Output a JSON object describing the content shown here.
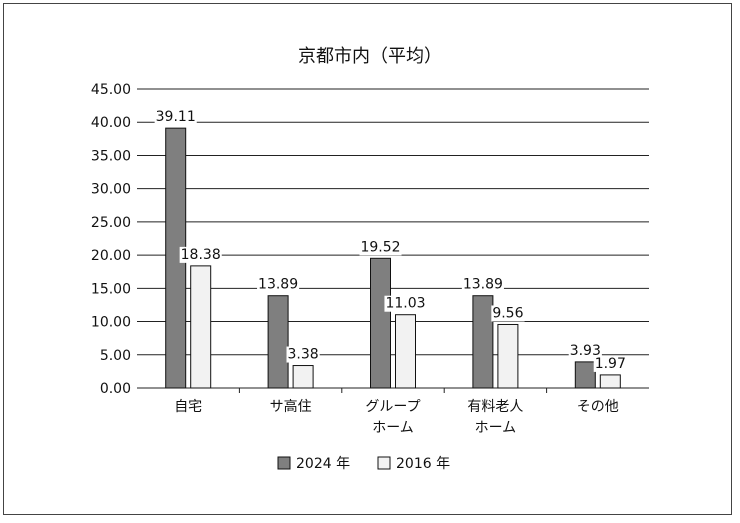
{
  "chart_data": {
    "type": "bar",
    "title": "京都市内（平均）",
    "xlabel": "",
    "ylabel": "",
    "ylim": [
      0,
      45
    ],
    "yticks": [
      "0.00",
      "5.00",
      "10.00",
      "15.00",
      "20.00",
      "25.00",
      "30.00",
      "35.00",
      "40.00",
      "45.00"
    ],
    "grid": true,
    "legend_position": "bottom",
    "categories": [
      [
        "自宅"
      ],
      [
        "サ高住"
      ],
      [
        "グループ",
        "ホーム"
      ],
      [
        "有料老人",
        "ホーム"
      ],
      [
        "その他"
      ]
    ],
    "series": [
      {
        "name": "2024 年",
        "color": "#7f7f7f",
        "values": [
          39.11,
          13.89,
          19.52,
          13.89,
          3.93
        ],
        "labels": [
          "39.11",
          "13.89",
          "19.52",
          "13.89",
          "3.93"
        ]
      },
      {
        "name": "2016 年",
        "color": "#f2f2f2",
        "values": [
          18.38,
          3.38,
          11.03,
          9.56,
          1.97
        ],
        "labels": [
          "18.38",
          "3.38",
          "11.03",
          "9.56",
          "1.97"
        ]
      }
    ]
  }
}
